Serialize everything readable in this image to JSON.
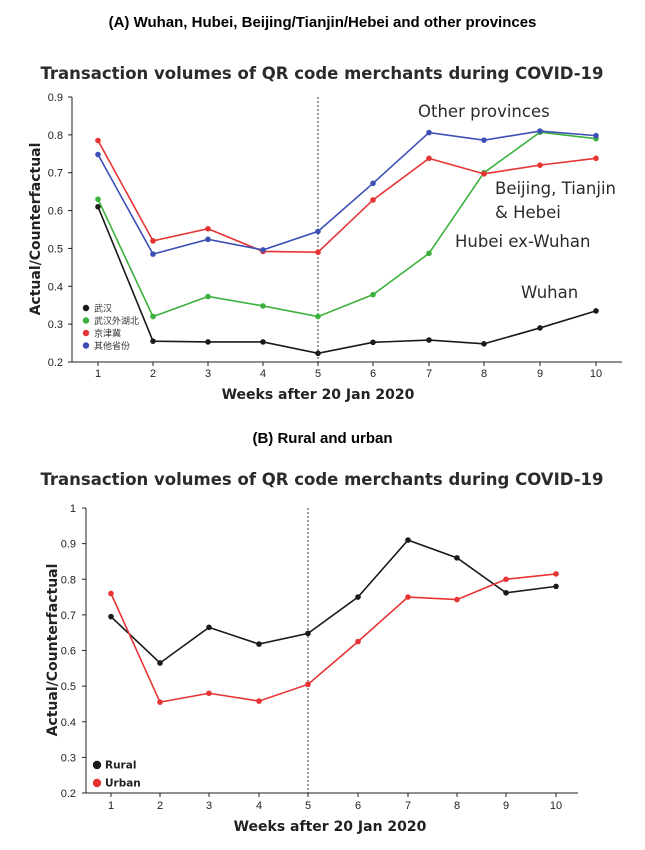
{
  "panel_a": {
    "heading": "(A) Wuhan, Hubei, Beijing/Tianjin/Hebei and other provinces"
  },
  "panel_b": {
    "heading": "(B) Rural and urban"
  },
  "chart_data": [
    {
      "type": "line",
      "title": "Transaction volumes of QR code merchants during COVID-19",
      "xlabel": "Weeks after 20 Jan 2020",
      "ylabel": "Actual/Counterfactual",
      "x": [
        1,
        2,
        3,
        4,
        5,
        6,
        7,
        8,
        9,
        10
      ],
      "xticks": [
        "1",
        "2",
        "3",
        "4",
        "5",
        "6",
        "7",
        "8",
        "9",
        "10"
      ],
      "ylim": [
        0.2,
        0.9
      ],
      "yticks": [
        "0.2",
        "0.3",
        "0.4",
        "0.5",
        "0.6",
        "0.7",
        "0.8",
        "0.9"
      ],
      "vline_x": 5,
      "grid": false,
      "legend_position": "bottom-left",
      "series": [
        {
          "name": "武汉",
          "color": "#1a1a1a",
          "values": [
            0.61,
            0.255,
            0.253,
            0.253,
            0.223,
            0.252,
            0.258,
            0.248,
            0.29,
            0.335
          ]
        },
        {
          "name": "武汉外湖北",
          "color": "#3db13d",
          "values": [
            0.63,
            0.32,
            0.373,
            0.348,
            0.32,
            0.378,
            0.487,
            0.7,
            0.807,
            0.79
          ]
        },
        {
          "name": "京津冀",
          "color": "#e63333",
          "values": [
            0.785,
            0.52,
            0.552,
            0.492,
            0.49,
            0.628,
            0.738,
            0.697,
            0.72,
            0.738
          ]
        },
        {
          "name": "其他省份",
          "color": "#3d4fb5",
          "values": [
            0.748,
            0.485,
            0.524,
            0.496,
            0.545,
            0.672,
            0.806,
            0.786,
            0.81,
            0.798
          ]
        }
      ],
      "annotations": [
        "Other provinces",
        "Beijing, Tianjin",
        "& Hebei",
        "Hubei ex-Wuhan",
        "Wuhan"
      ]
    },
    {
      "type": "line",
      "title": "Transaction volumes of QR code merchants during COVID-19",
      "xlabel": "Weeks after 20 Jan 2020",
      "ylabel": "Actual/Counterfactual",
      "x": [
        1,
        2,
        3,
        4,
        5,
        6,
        7,
        8,
        9,
        10
      ],
      "xticks": [
        "1",
        "2",
        "3",
        "4",
        "5",
        "6",
        "7",
        "8",
        "9",
        "10"
      ],
      "ylim": [
        0.2,
        1.0
      ],
      "yticks": [
        "0.2",
        "0.3",
        "0.4",
        "0.5",
        "0.6",
        "0.7",
        "0.8",
        "0.9",
        "1"
      ],
      "vline_x": 5,
      "grid": false,
      "legend_position": "bottom-left",
      "series": [
        {
          "name": "Rural",
          "color": "#1a1a1a",
          "values": [
            0.695,
            0.565,
            0.665,
            0.618,
            0.648,
            0.75,
            0.91,
            0.86,
            0.762,
            0.78
          ]
        },
        {
          "name": "Urban",
          "color": "#e63333",
          "values": [
            0.76,
            0.455,
            0.48,
            0.458,
            0.505,
            0.625,
            0.75,
            0.743,
            0.8,
            0.815
          ]
        }
      ]
    }
  ]
}
